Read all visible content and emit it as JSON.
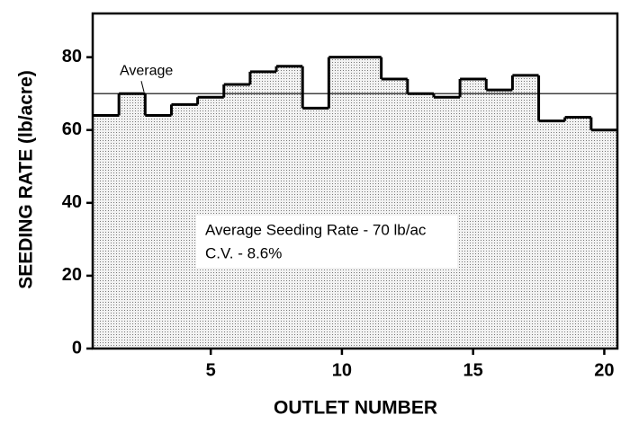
{
  "chart_data": {
    "type": "step",
    "x_label": "OUTLET NUMBER",
    "y_label": "SEEDING RATE (lb/acre)",
    "x": [
      1,
      2,
      3,
      4,
      5,
      6,
      7,
      8,
      9,
      10,
      11,
      12,
      13,
      14,
      15,
      16,
      17,
      18,
      19,
      20
    ],
    "values": [
      64,
      70,
      64,
      67,
      69,
      72.5,
      76,
      77.5,
      66,
      80,
      80,
      74,
      70,
      69,
      74,
      71,
      75,
      62.5,
      63.5,
      60
    ],
    "xlim": [
      0.5,
      20.5
    ],
    "xticks": [
      5,
      10,
      15,
      20
    ],
    "ylim": [
      0,
      92
    ],
    "yticks": [
      0,
      20,
      40,
      60,
      80
    ],
    "average_line": {
      "value": 70,
      "label": "Average"
    },
    "annotations": [
      "Average Seeding Rate - 70 lb/ac",
      "C.V. - 8.6%"
    ]
  }
}
